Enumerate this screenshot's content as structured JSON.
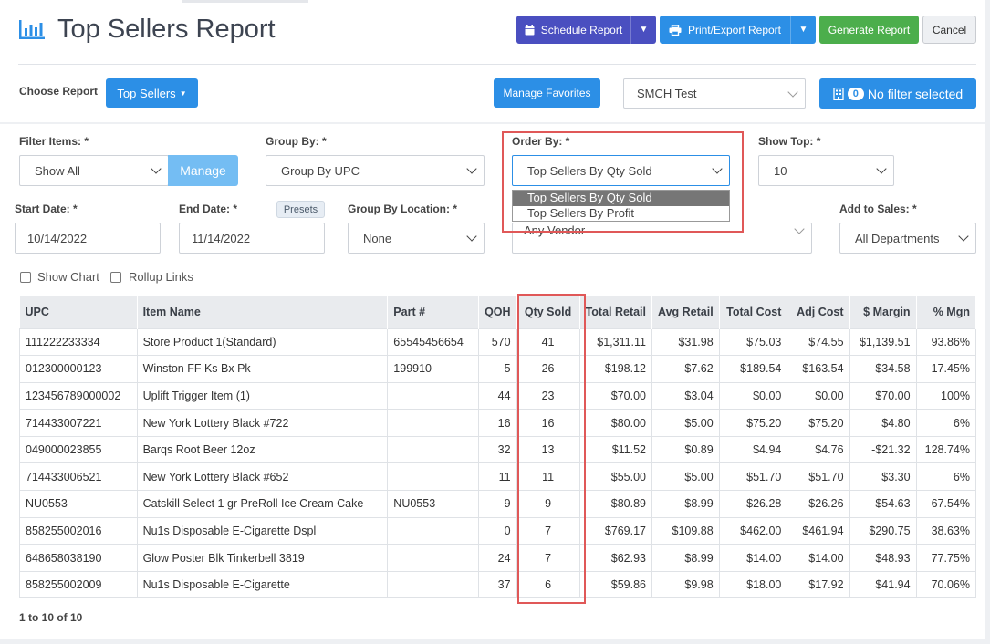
{
  "header": {
    "title": "Top Sellers Report",
    "logo_icon": "bar-chart-icon",
    "schedule_label": "Schedule Report",
    "print_label": "Print/Export Report",
    "generate_label": "Generate Report",
    "cancel_label": "Cancel"
  },
  "choose": {
    "label": "Choose Report",
    "report_button": "Top Sellers",
    "favorites_button": "Manage Favorites",
    "store_value": "SMCH Test",
    "filter_count": "0",
    "filter_label": "No filter selected"
  },
  "filters": {
    "filter_items_label": "Filter Items: *",
    "filter_items_value": "Show All",
    "manage_button": "Manage",
    "group_by_label": "Group By: *",
    "group_by_value": "Group By UPC",
    "order_by_label": "Order By: *",
    "order_by_value": "Top Sellers By Qty Sold",
    "order_by_options": [
      "Top Sellers By Qty Sold",
      "Top Sellers By Profit"
    ],
    "show_top_label": "Show Top: *",
    "show_top_value": "10",
    "start_date_label": "Start Date: *",
    "start_date_value": "10/14/2022",
    "end_date_label": "End Date: *",
    "end_date_value": "11/14/2022",
    "presets_label": "Presets",
    "group_by_location_label": "Group By Location: *",
    "group_by_location_value": "None",
    "vendor_value": "Any Vendor",
    "add_to_sales_label": "Add to Sales: *",
    "add_to_sales_value": "All Departments",
    "show_chart_label": "Show Chart",
    "rollup_links_label": "Rollup Links"
  },
  "table": {
    "columns": [
      "UPC",
      "Item Name",
      "Part #",
      "QOH",
      "Qty Sold",
      "Total Retail",
      "Avg Retail",
      "Total Cost",
      "Adj Cost",
      "$ Margin",
      "% Mgn"
    ],
    "rows": [
      [
        "111222233334",
        "Store Product 1(Standard)",
        "65545456654",
        "570",
        "41",
        "$1,311.11",
        "$31.98",
        "$75.03",
        "$74.55",
        "$1,139.51",
        "93.86%"
      ],
      [
        "012300000123",
        "Winston FF Ks Bx Pk",
        "199910",
        "5",
        "26",
        "$198.12",
        "$7.62",
        "$189.54",
        "$163.54",
        "$34.58",
        "17.45%"
      ],
      [
        "123456789000002",
        "Uplift Trigger Item (1)",
        "",
        "44",
        "23",
        "$70.00",
        "$3.04",
        "$0.00",
        "$0.00",
        "$70.00",
        "100%"
      ],
      [
        "714433007221",
        "New York Lottery Black #722",
        "",
        "16",
        "16",
        "$80.00",
        "$5.00",
        "$75.20",
        "$75.20",
        "$4.80",
        "6%"
      ],
      [
        "049000023855",
        "Barqs Root Beer 12oz",
        "",
        "32",
        "13",
        "$11.52",
        "$0.89",
        "$4.94",
        "$4.76",
        "-$21.32",
        "128.74%"
      ],
      [
        "714433006521",
        "New York Lottery Black #652",
        "",
        "11",
        "11",
        "$55.00",
        "$5.00",
        "$51.70",
        "$51.70",
        "$3.30",
        "6%"
      ],
      [
        "NU0553",
        "Catskill Select 1 gr PreRoll Ice Cream Cake",
        "NU0553",
        "9",
        "9",
        "$80.89",
        "$8.99",
        "$26.28",
        "$26.26",
        "$54.63",
        "67.54%"
      ],
      [
        "858255002016",
        "Nu1s Disposable E-Cigarette Dspl",
        "",
        "0",
        "7",
        "$769.17",
        "$109.88",
        "$462.00",
        "$461.94",
        "$290.75",
        "38.63%"
      ],
      [
        "648658038190",
        "Glow Poster Blk Tinkerbell 3819",
        "",
        "24",
        "7",
        "$62.93",
        "$8.99",
        "$14.00",
        "$14.00",
        "$48.93",
        "77.75%"
      ],
      [
        "858255002009",
        "Nu1s Disposable E-Cigarette",
        "",
        "37",
        "6",
        "$59.86",
        "$9.98",
        "$18.00",
        "$17.92",
        "$41.94",
        "70.06%"
      ]
    ]
  },
  "pager": "1 to 10 of 10",
  "colors": {
    "primary": "#2c8fe6",
    "schedule": "#4a4fc0",
    "generate": "#4cae4c",
    "highlight": "#e05858"
  }
}
